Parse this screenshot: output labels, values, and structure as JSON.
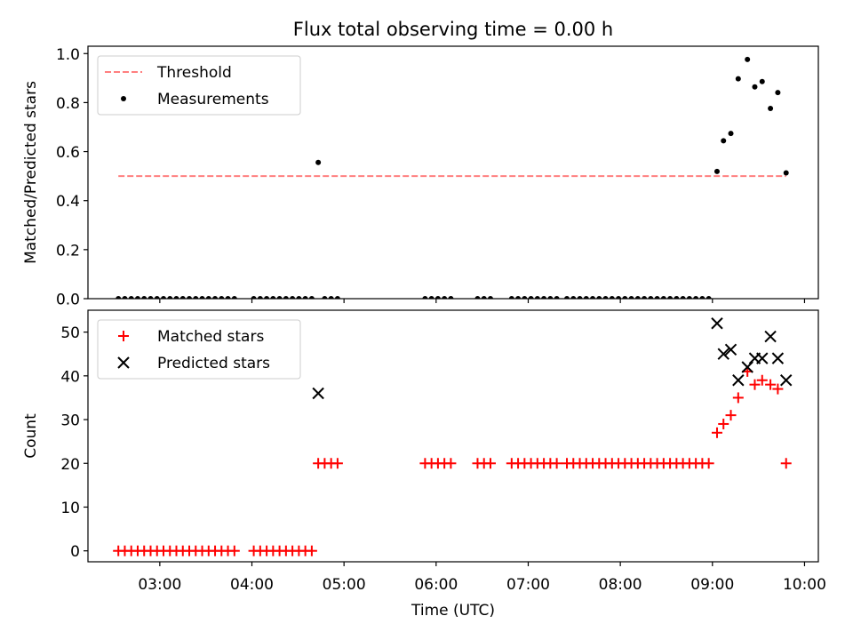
{
  "figure": {
    "title": "Flux total observing time = 0.00 h"
  },
  "chart_data": [
    {
      "type": "scatter",
      "ylabel": "Matched/Predicted stars",
      "ylim": [
        0,
        1.03
      ],
      "yticks": [
        0.0,
        0.2,
        0.4,
        0.6,
        0.8,
        1.0
      ],
      "ytick_labels": [
        "0.0",
        "0.2",
        "0.4",
        "0.6",
        "0.8",
        "1.0"
      ],
      "xlim": [
        2.22,
        10.15
      ],
      "x_unit": "hours UTC",
      "legend_position": "upper-left",
      "legend": [
        {
          "label": "Threshold",
          "style": "dashed-line",
          "color": "#ff7f7f"
        },
        {
          "label": "Measurements",
          "style": "dot",
          "color": "#000000"
        }
      ],
      "threshold": {
        "y": 0.5,
        "x_start": 2.55,
        "x_end": 9.8,
        "color": "#ff7f7f"
      },
      "measurements": {
        "x": [
          2.55,
          2.62,
          2.69,
          2.76,
          2.83,
          2.9,
          2.97,
          3.04,
          3.11,
          3.18,
          3.25,
          3.32,
          3.39,
          3.46,
          3.53,
          3.6,
          3.67,
          3.74,
          3.81,
          4.02,
          4.09,
          4.16,
          4.23,
          4.3,
          4.37,
          4.44,
          4.51,
          4.58,
          4.65,
          4.72,
          4.79,
          4.86,
          4.93,
          5.88,
          5.95,
          6.02,
          6.09,
          6.16,
          6.45,
          6.52,
          6.59,
          6.82,
          6.89,
          6.96,
          7.03,
          7.1,
          7.17,
          7.24,
          7.31,
          7.42,
          7.49,
          7.56,
          7.63,
          7.7,
          7.77,
          7.84,
          7.91,
          7.98,
          8.05,
          8.12,
          8.19,
          8.26,
          8.33,
          8.4,
          8.47,
          8.54,
          8.61,
          8.68,
          8.75,
          8.82,
          8.89,
          8.96,
          9.05,
          9.12,
          9.2,
          9.28,
          9.38,
          9.46,
          9.54,
          9.63,
          9.71,
          9.8
        ],
        "y": [
          0,
          0,
          0,
          0,
          0,
          0,
          0,
          0,
          0,
          0,
          0,
          0,
          0,
          0,
          0,
          0,
          0,
          0,
          0,
          0,
          0,
          0,
          0,
          0,
          0,
          0,
          0,
          0,
          0,
          0.556,
          0,
          0,
          0,
          0,
          0,
          0,
          0,
          0,
          0,
          0,
          0,
          0,
          0,
          0,
          0,
          0,
          0,
          0,
          0,
          0,
          0,
          0,
          0,
          0,
          0,
          0,
          0,
          0,
          0,
          0,
          0,
          0,
          0,
          0,
          0,
          0,
          0,
          0,
          0,
          0,
          0,
          0,
          0.519,
          0.644,
          0.674,
          0.897,
          0.976,
          0.864,
          0.886,
          0.776,
          0.841,
          0.513
        ],
        "color": "#000000"
      }
    },
    {
      "type": "scatter",
      "ylabel": "Count",
      "xlabel": "Time (UTC)",
      "ylim": [
        -2.5,
        55
      ],
      "yticks": [
        0,
        10,
        20,
        30,
        40,
        50
      ],
      "ytick_labels": [
        "0",
        "10",
        "20",
        "30",
        "40",
        "50"
      ],
      "xlim": [
        2.22,
        10.15
      ],
      "xticks": [
        3,
        4,
        5,
        6,
        7,
        8,
        9,
        10
      ],
      "xtick_labels": [
        "03:00",
        "04:00",
        "05:00",
        "06:00",
        "07:00",
        "08:00",
        "09:00",
        "10:00"
      ],
      "legend_position": "upper-left",
      "legend": [
        {
          "label": "Matched stars",
          "style": "plus",
          "color": "#ff0000"
        },
        {
          "label": "Predicted stars",
          "style": "x",
          "color": "#000000"
        }
      ],
      "series": [
        {
          "name": "Matched stars",
          "marker": "plus",
          "color": "#ff0000",
          "x": [
            2.55,
            2.62,
            2.69,
            2.76,
            2.83,
            2.9,
            2.97,
            3.04,
            3.11,
            3.18,
            3.25,
            3.32,
            3.39,
            3.46,
            3.53,
            3.6,
            3.67,
            3.74,
            3.81,
            4.02,
            4.09,
            4.16,
            4.23,
            4.3,
            4.37,
            4.44,
            4.51,
            4.58,
            4.65,
            4.72,
            4.79,
            4.86,
            4.93,
            5.88,
            5.95,
            6.02,
            6.09,
            6.16,
            6.45,
            6.52,
            6.59,
            6.82,
            6.89,
            6.96,
            7.03,
            7.1,
            7.17,
            7.24,
            7.31,
            7.42,
            7.49,
            7.56,
            7.63,
            7.7,
            7.77,
            7.84,
            7.91,
            7.98,
            8.05,
            8.12,
            8.19,
            8.26,
            8.33,
            8.4,
            8.47,
            8.54,
            8.61,
            8.68,
            8.75,
            8.82,
            8.89,
            8.96,
            9.05,
            9.12,
            9.2,
            9.28,
            9.38,
            9.46,
            9.54,
            9.63,
            9.71,
            9.8
          ],
          "y": [
            0,
            0,
            0,
            0,
            0,
            0,
            0,
            0,
            0,
            0,
            0,
            0,
            0,
            0,
            0,
            0,
            0,
            0,
            0,
            0,
            0,
            0,
            0,
            0,
            0,
            0,
            0,
            0,
            0,
            20,
            20,
            20,
            20,
            20,
            20,
            20,
            20,
            20,
            20,
            20,
            20,
            20,
            20,
            20,
            20,
            20,
            20,
            20,
            20,
            20,
            20,
            20,
            20,
            20,
            20,
            20,
            20,
            20,
            20,
            20,
            20,
            20,
            20,
            20,
            20,
            20,
            20,
            20,
            20,
            20,
            20,
            20,
            27,
            29,
            31,
            35,
            41,
            38,
            39,
            38,
            37,
            20
          ]
        },
        {
          "name": "Predicted stars",
          "marker": "x",
          "color": "#000000",
          "x": [
            4.72,
            9.05,
            9.12,
            9.2,
            9.28,
            9.38,
            9.46,
            9.54,
            9.63,
            9.71,
            9.8
          ],
          "y": [
            36,
            52,
            45,
            46,
            39,
            42,
            44,
            44,
            49,
            44,
            39
          ]
        }
      ]
    }
  ]
}
